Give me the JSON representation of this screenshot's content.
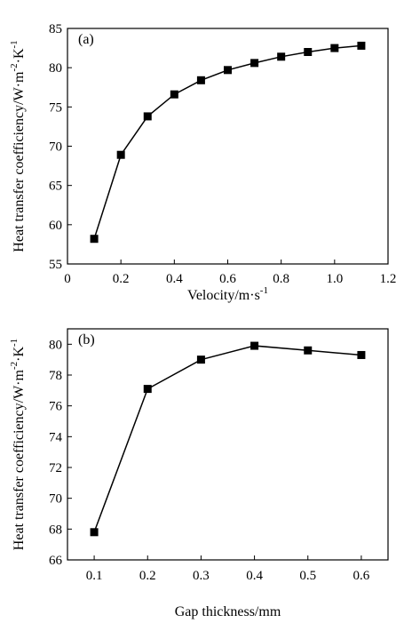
{
  "chart_data": [
    {
      "type": "line",
      "panel_label": "(a)",
      "xlabel": "Velocity/m·s",
      "xlabel_sup": "-1",
      "ylabel": "Heat transfer coefficiency/W·m",
      "ylabel_sup": "-2",
      "ylabel_tail": "·K",
      "ylabel_tail_sup": "-1",
      "xlim": [
        0,
        1.2
      ],
      "ylim": [
        55,
        85
      ],
      "xticks": [
        "0",
        "0.2",
        "0.4",
        "0.6",
        "0.8",
        "1.0",
        "1.2"
      ],
      "yticks": [
        "55",
        "60",
        "65",
        "70",
        "75",
        "80",
        "85"
      ],
      "grid": false,
      "marker": "square",
      "color": "#000000",
      "series": [
        {
          "x": [
            0.1,
            0.2,
            0.3,
            0.4,
            0.5,
            0.6,
            0.7,
            0.8,
            0.9,
            1.0,
            1.1
          ],
          "y": [
            58.2,
            68.9,
            73.8,
            76.6,
            78.4,
            79.7,
            80.6,
            81.4,
            82.0,
            82.5,
            82.8
          ]
        }
      ]
    },
    {
      "type": "line",
      "panel_label": "(b)",
      "xlabel": "Gap thickness/mm",
      "xlabel_sup": "",
      "ylabel": "Heat transfer coefficiency/W·m",
      "ylabel_sup": "-2",
      "ylabel_tail": "·K",
      "ylabel_tail_sup": "-1",
      "xlim": [
        0.05,
        0.65
      ],
      "ylim": [
        66,
        81
      ],
      "xticks": [
        "0.1",
        "0.2",
        "0.3",
        "0.4",
        "0.5",
        "0.6"
      ],
      "yticks": [
        "66",
        "68",
        "70",
        "72",
        "74",
        "76",
        "78",
        "80"
      ],
      "grid": false,
      "marker": "square",
      "color": "#000000",
      "series": [
        {
          "x": [
            0.1,
            0.2,
            0.3,
            0.4,
            0.5,
            0.6
          ],
          "y": [
            67.8,
            77.1,
            79.0,
            79.9,
            79.6,
            79.3
          ]
        }
      ]
    }
  ]
}
